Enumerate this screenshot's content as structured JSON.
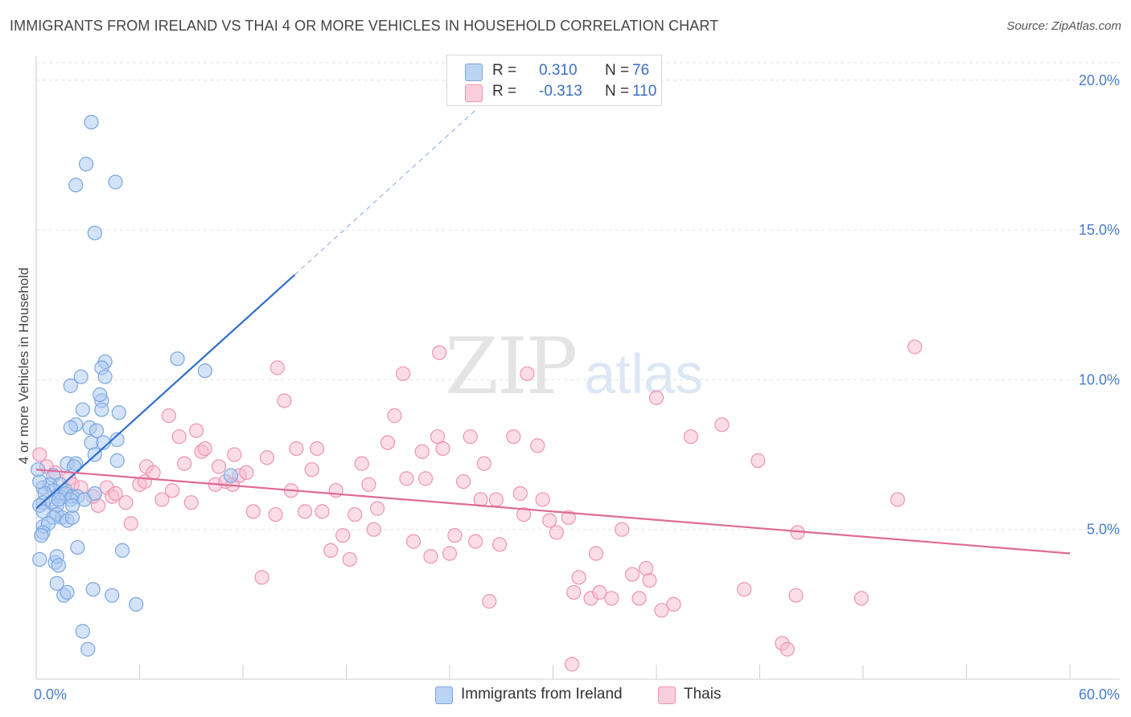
{
  "title": "IMMIGRANTS FROM IRELAND VS THAI 4 OR MORE VEHICLES IN HOUSEHOLD CORRELATION CHART",
  "source": "Source: ZipAtlas.com",
  "watermark": {
    "part1": "ZIP",
    "part2": "atlas"
  },
  "colors": {
    "blue_fill": "#a9c8f0",
    "blue_stroke": "#7aa6e0",
    "blue_line": "#2f6ecb",
    "pink_fill": "#f6bcd0",
    "pink_stroke": "#ee93b3",
    "pink_line": "#e06a96",
    "grid": "#e3e3e3",
    "tick_text": "#4a7cc9"
  },
  "legend_top": [
    {
      "r_label": "R = ",
      "r_value": "0.310",
      "n_label": "N = ",
      "n_value": "76",
      "color": "blue"
    },
    {
      "r_label": "R = ",
      "r_value": "-0.313",
      "n_label": "N = ",
      "n_value": "110",
      "color": "pink"
    }
  ],
  "legend_bottom": [
    {
      "label": "Immigrants from Ireland",
      "color": "blue"
    },
    {
      "label": "Thais",
      "color": "pink"
    }
  ],
  "chart_data": {
    "type": "scatter",
    "title": "IMMIGRANTS FROM IRELAND VS THAI 4 OR MORE VEHICLES IN HOUSEHOLD CORRELATION CHART",
    "xlabel": "",
    "ylabel": "4 or more Vehicles in Household",
    "xlim": [
      0,
      60
    ],
    "ylim": [
      0,
      20.8
    ],
    "x_tick_labels": [
      {
        "value": 0,
        "label": "0.0%"
      },
      {
        "value": 60,
        "label": "60.0%"
      }
    ],
    "y_ticks": [
      {
        "value": 5,
        "label": "5.0%"
      },
      {
        "value": 10,
        "label": "10.0%"
      },
      {
        "value": 15,
        "label": "15.0%"
      },
      {
        "value": 20,
        "label": "20.0%"
      }
    ],
    "x_minor_ticks": [
      6,
      12,
      18,
      24,
      30,
      36,
      42,
      48,
      54,
      60
    ],
    "grid": true,
    "legend_placement": "bottom",
    "series": [
      {
        "name": "Immigrants from Ireland",
        "color": "blue",
        "trend": {
          "x": [
            0,
            15
          ],
          "y": [
            5.7,
            13.5
          ],
          "dashed_extension_to": [
            25.5,
            19.0
          ]
        },
        "points": [
          [
            3.2,
            18.6
          ],
          [
            2.9,
            17.2
          ],
          [
            2.3,
            16.5
          ],
          [
            4.6,
            16.6
          ],
          [
            3.4,
            14.9
          ],
          [
            8.2,
            10.7
          ],
          [
            9.8,
            10.3
          ],
          [
            4.0,
            10.6
          ],
          [
            3.8,
            10.4
          ],
          [
            2.6,
            10.1
          ],
          [
            4.0,
            10.1
          ],
          [
            2.0,
            9.8
          ],
          [
            3.8,
            9.3
          ],
          [
            3.7,
            9.5
          ],
          [
            2.7,
            9.0
          ],
          [
            3.8,
            9.0
          ],
          [
            4.8,
            8.9
          ],
          [
            2.3,
            8.5
          ],
          [
            2.0,
            8.4
          ],
          [
            3.1,
            8.4
          ],
          [
            3.5,
            8.3
          ],
          [
            3.2,
            7.9
          ],
          [
            3.9,
            7.9
          ],
          [
            4.7,
            8.0
          ],
          [
            1.8,
            7.2
          ],
          [
            2.3,
            7.2
          ],
          [
            4.7,
            7.3
          ],
          [
            2.2,
            7.1
          ],
          [
            3.4,
            7.5
          ],
          [
            1.0,
            6.8
          ],
          [
            11.3,
            6.8
          ],
          [
            0.4,
            6.4
          ],
          [
            0.8,
            6.5
          ],
          [
            1.4,
            6.5
          ],
          [
            1.0,
            6.3
          ],
          [
            1.7,
            6.3
          ],
          [
            0.5,
            6.2
          ],
          [
            1.4,
            6.1
          ],
          [
            1.7,
            6.2
          ],
          [
            2.1,
            6.1
          ],
          [
            2.4,
            6.1
          ],
          [
            2.0,
            6.0
          ],
          [
            2.8,
            6.0
          ],
          [
            0.4,
            5.9
          ],
          [
            0.9,
            5.9
          ],
          [
            1.2,
            5.8
          ],
          [
            0.2,
            5.8
          ],
          [
            0.4,
            5.6
          ],
          [
            1.2,
            5.5
          ],
          [
            1.5,
            5.4
          ],
          [
            1.8,
            5.3
          ],
          [
            2.1,
            5.4
          ],
          [
            1.0,
            5.4
          ],
          [
            0.4,
            5.1
          ],
          [
            0.7,
            5.2
          ],
          [
            0.4,
            4.9
          ],
          [
            0.3,
            4.8
          ],
          [
            2.4,
            4.4
          ],
          [
            5.0,
            4.3
          ],
          [
            0.2,
            4.0
          ],
          [
            1.1,
            3.9
          ],
          [
            1.2,
            4.1
          ],
          [
            1.3,
            3.8
          ],
          [
            1.2,
            3.2
          ],
          [
            1.6,
            2.8
          ],
          [
            1.8,
            2.9
          ],
          [
            3.3,
            3.0
          ],
          [
            4.4,
            2.8
          ],
          [
            5.8,
            2.5
          ],
          [
            2.7,
            1.6
          ],
          [
            3.0,
            1.0
          ],
          [
            0.2,
            6.6
          ],
          [
            0.1,
            7.0
          ],
          [
            1.3,
            6.0
          ],
          [
            2.1,
            5.8
          ],
          [
            3.4,
            6.2
          ]
        ]
      },
      {
        "name": "Thais",
        "color": "pink",
        "trend": {
          "x": [
            0,
            60
          ],
          "y": [
            7.0,
            4.2
          ]
        },
        "points": [
          [
            0.2,
            7.5
          ],
          [
            0.6,
            7.1
          ],
          [
            1.1,
            6.9
          ],
          [
            1.9,
            6.7
          ],
          [
            2.1,
            6.5
          ],
          [
            2.6,
            6.4
          ],
          [
            3.3,
            6.1
          ],
          [
            3.6,
            5.8
          ],
          [
            4.1,
            6.4
          ],
          [
            4.4,
            6.1
          ],
          [
            4.6,
            6.2
          ],
          [
            5.2,
            5.9
          ],
          [
            5.5,
            5.2
          ],
          [
            6.0,
            6.5
          ],
          [
            6.3,
            6.6
          ],
          [
            6.4,
            7.1
          ],
          [
            6.8,
            6.9
          ],
          [
            7.3,
            6.0
          ],
          [
            7.7,
            8.8
          ],
          [
            7.9,
            6.3
          ],
          [
            8.3,
            8.1
          ],
          [
            8.6,
            7.2
          ],
          [
            9.0,
            5.9
          ],
          [
            9.3,
            8.3
          ],
          [
            9.6,
            7.6
          ],
          [
            9.8,
            7.7
          ],
          [
            10.4,
            6.5
          ],
          [
            10.6,
            7.1
          ],
          [
            11.0,
            6.6
          ],
          [
            11.4,
            6.5
          ],
          [
            11.5,
            7.5
          ],
          [
            11.8,
            6.8
          ],
          [
            12.2,
            6.9
          ],
          [
            12.6,
            5.6
          ],
          [
            13.1,
            3.4
          ],
          [
            13.4,
            7.4
          ],
          [
            13.9,
            5.5
          ],
          [
            14.0,
            10.4
          ],
          [
            14.4,
            9.3
          ],
          [
            14.8,
            6.3
          ],
          [
            15.1,
            7.7
          ],
          [
            15.6,
            5.6
          ],
          [
            16.0,
            7.0
          ],
          [
            16.3,
            7.7
          ],
          [
            16.6,
            5.6
          ],
          [
            17.1,
            4.3
          ],
          [
            17.4,
            6.3
          ],
          [
            17.8,
            4.8
          ],
          [
            18.2,
            4.0
          ],
          [
            18.5,
            5.5
          ],
          [
            18.9,
            7.2
          ],
          [
            19.3,
            6.5
          ],
          [
            19.6,
            5.0
          ],
          [
            19.8,
            5.7
          ],
          [
            20.4,
            7.9
          ],
          [
            20.8,
            8.8
          ],
          [
            21.3,
            10.2
          ],
          [
            21.5,
            6.7
          ],
          [
            21.9,
            4.6
          ],
          [
            22.4,
            7.6
          ],
          [
            22.6,
            6.7
          ],
          [
            22.9,
            4.1
          ],
          [
            23.3,
            8.1
          ],
          [
            23.4,
            10.9
          ],
          [
            23.6,
            7.7
          ],
          [
            24.0,
            4.2
          ],
          [
            24.3,
            4.8
          ],
          [
            24.8,
            6.6
          ],
          [
            25.2,
            8.1
          ],
          [
            25.5,
            4.6
          ],
          [
            25.8,
            6.0
          ],
          [
            26.0,
            7.2
          ],
          [
            26.3,
            2.6
          ],
          [
            26.7,
            6.0
          ],
          [
            26.9,
            4.5
          ],
          [
            27.7,
            8.1
          ],
          [
            28.1,
            6.2
          ],
          [
            28.3,
            5.5
          ],
          [
            28.5,
            10.2
          ],
          [
            29.1,
            7.8
          ],
          [
            29.4,
            6.0
          ],
          [
            29.8,
            5.3
          ],
          [
            30.2,
            4.9
          ],
          [
            30.9,
            5.4
          ],
          [
            31.2,
            2.9
          ],
          [
            31.5,
            3.4
          ],
          [
            32.2,
            2.7
          ],
          [
            32.5,
            4.2
          ],
          [
            32.7,
            2.9
          ],
          [
            33.4,
            2.7
          ],
          [
            34.0,
            5.0
          ],
          [
            34.6,
            3.5
          ],
          [
            35.0,
            2.7
          ],
          [
            35.4,
            3.7
          ],
          [
            35.6,
            3.3
          ],
          [
            36.0,
            9.4
          ],
          [
            37.0,
            2.5
          ],
          [
            38.0,
            8.1
          ],
          [
            39.8,
            8.5
          ],
          [
            41.1,
            3.0
          ],
          [
            41.9,
            7.3
          ],
          [
            43.3,
            1.2
          ],
          [
            43.6,
            1.0
          ],
          [
            44.1,
            2.8
          ],
          [
            44.2,
            4.9
          ],
          [
            47.9,
            2.7
          ],
          [
            50.0,
            6.0
          ],
          [
            51.0,
            11.1
          ],
          [
            31.1,
            0.5
          ],
          [
            36.3,
            2.3
          ]
        ]
      }
    ]
  }
}
